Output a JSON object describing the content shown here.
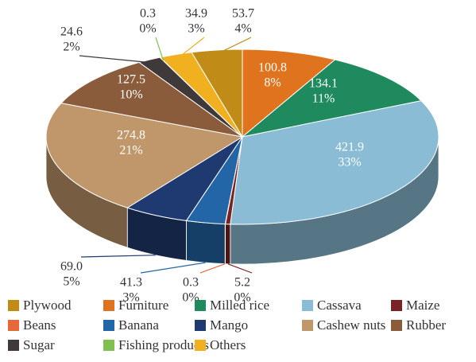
{
  "chart_data": {
    "type": "pie3d",
    "categories": [
      "Plywood",
      "Furniture",
      "Milled rice",
      "Cassava",
      "Maize",
      "Beans",
      "Banana",
      "Mango",
      "Cashew nuts",
      "Rubber",
      "Sugar",
      "Fishing products",
      "Others"
    ],
    "values": [
      53.7,
      100.8,
      134.1,
      421.9,
      5.2,
      0.3,
      41.3,
      69.0,
      274.8,
      127.5,
      24.6,
      0.3,
      34.9
    ],
    "value_labels": [
      "53.7",
      "100.8",
      "134.1",
      "421.9",
      "5.2",
      "0.3",
      "41.3",
      "69.0",
      "274.8",
      "127.5",
      "24.6",
      "0.3",
      "34.9"
    ],
    "percent_labels": [
      "4%",
      "8%",
      "11%",
      "33%",
      "0%",
      "0%",
      "3%",
      "5%",
      "21%",
      "10%",
      "2%",
      "0%",
      "3%"
    ],
    "colors": [
      "#c08b16",
      "#e0731e",
      "#1e8a5e",
      "#8bbcd6",
      "#7b2222",
      "#e56a3a",
      "#2366a8",
      "#1f3a70",
      "#c0976a",
      "#8a5c3c",
      "#40393a",
      "#80c050",
      "#f0b020"
    ],
    "legend": "bottom"
  }
}
